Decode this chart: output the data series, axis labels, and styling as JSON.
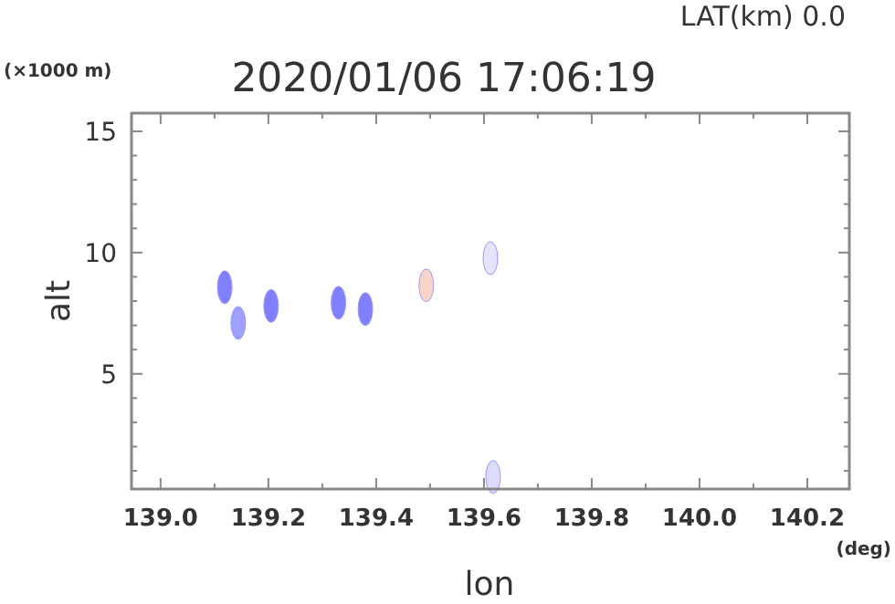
{
  "chart_data": {
    "type": "scatter",
    "title": "2020/01/06 17:06:19",
    "subtitle": "LAT(km) 0.0",
    "xlabel": "lon",
    "ylabel": "alt",
    "annotations": [
      "(×1000 m)",
      "(deg)"
    ],
    "x": [
      139.119,
      139.144,
      139.205,
      139.33,
      139.38,
      139.493,
      139.612,
      139.617
    ],
    "values": [
      8.57,
      7.1,
      7.8,
      7.93,
      7.67,
      8.65,
      9.77,
      0.75
    ],
    "colors": [
      "#7f7fff",
      "#9f9fff",
      "#8080ff",
      "#8080ff",
      "#8080ff",
      "#f8d4c8",
      "#e4e4ff",
      "#dcdcff"
    ],
    "marker": "circle",
    "xlim": [
      138.946,
      140.278
    ],
    "ylim": [
      0.25,
      15.75
    ],
    "xticks": [
      {
        "value": 139.0,
        "label": "139.0"
      },
      {
        "value": 139.1,
        "label": null
      },
      {
        "value": 139.2,
        "label": "139.2"
      },
      {
        "value": 139.3,
        "label": null
      },
      {
        "value": 139.4,
        "label": "139.4"
      },
      {
        "value": 139.5,
        "label": null
      },
      {
        "value": 139.6,
        "label": "139.6"
      },
      {
        "value": 139.7,
        "label": null
      },
      {
        "value": 139.8,
        "label": "139.8"
      },
      {
        "value": 139.9,
        "label": null
      },
      {
        "value": 140.0,
        "label": "140.0"
      },
      {
        "value": 140.1,
        "label": null
      },
      {
        "value": 140.2,
        "label": "140.2"
      }
    ],
    "yticks": [
      {
        "value": 1,
        "label": null
      },
      {
        "value": 2,
        "label": null
      },
      {
        "value": 3,
        "label": null
      },
      {
        "value": 4,
        "label": null
      },
      5,
      {
        "value": 6,
        "label": null
      },
      {
        "value": 7,
        "label": null
      },
      {
        "value": 8,
        "label": null
      },
      {
        "value": 9,
        "label": null
      },
      10,
      {
        "value": 11,
        "label": null
      },
      {
        "value": 12,
        "label": null
      },
      {
        "value": 13,
        "label": null
      },
      {
        "value": 14,
        "label": null
      },
      15
    ],
    "grid": false
  }
}
